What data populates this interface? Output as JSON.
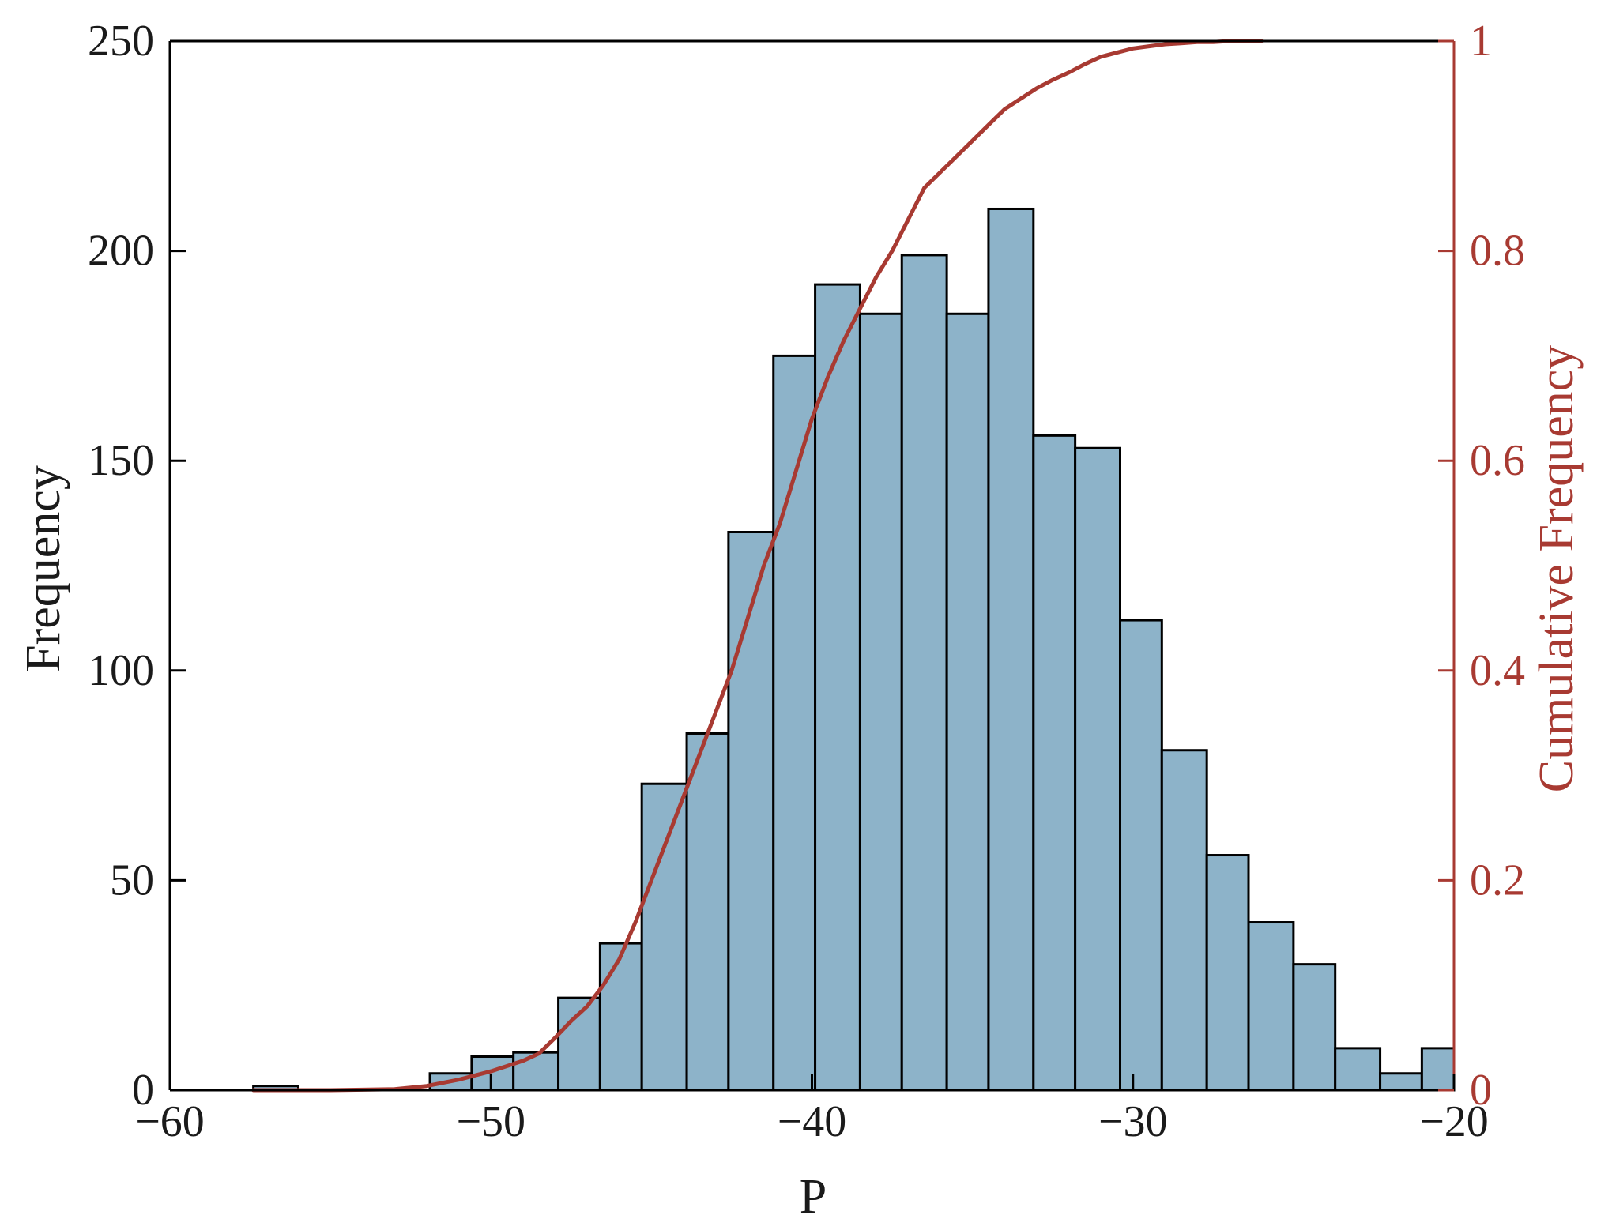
{
  "chart_data": {
    "type": "bar",
    "xlabel": "P",
    "ylabel": "Frequency",
    "y2label": "Cumulative Frequency",
    "xlim": [
      -60,
      -20
    ],
    "ylim": [
      0,
      250
    ],
    "y2lim": [
      0,
      1
    ],
    "xticks": [
      "−60",
      "−50",
      "−40",
      "−30",
      "−20"
    ],
    "yticks": [
      "0",
      "50",
      "100",
      "150",
      "200",
      "250"
    ],
    "y2ticks": [
      "0",
      "0.2",
      "0.4",
      "0.6",
      "0.8",
      "1"
    ],
    "grid": false,
    "bins": [
      {
        "start": -57.4,
        "end": -56.0,
        "count": 1
      },
      {
        "start": -51.9,
        "end": -50.6,
        "count": 4
      },
      {
        "start": -50.6,
        "end": -49.3,
        "count": 8
      },
      {
        "start": -49.3,
        "end": -47.9,
        "count": 9
      },
      {
        "start": -47.9,
        "end": -46.6,
        "count": 22
      },
      {
        "start": -46.6,
        "end": -45.3,
        "count": 35
      },
      {
        "start": -45.3,
        "end": -43.9,
        "count": 73
      },
      {
        "start": -43.9,
        "end": -42.6,
        "count": 85
      },
      {
        "start": -42.6,
        "end": -41.2,
        "count": 133
      },
      {
        "start": -41.2,
        "end": -39.9,
        "count": 175
      },
      {
        "start": -39.9,
        "end": -38.5,
        "count": 192
      },
      {
        "start": -38.5,
        "end": -37.2,
        "count": 185
      },
      {
        "start": -37.2,
        "end": -35.8,
        "count": 199
      },
      {
        "start": -35.8,
        "end": -34.5,
        "count": 185
      },
      {
        "start": -34.5,
        "end": -33.1,
        "count": 210
      },
      {
        "start": -33.1,
        "end": -31.8,
        "count": 156
      },
      {
        "start": -31.8,
        "end": -30.4,
        "count": 153
      },
      {
        "start": -30.4,
        "end": -29.1,
        "count": 112
      },
      {
        "start": -29.1,
        "end": -27.7,
        "count": 81
      },
      {
        "start": -27.7,
        "end": -26.4,
        "count": 56
      },
      {
        "start": -26.4,
        "end": -25.0,
        "count": 40
      },
      {
        "start": -25.0,
        "end": -23.7,
        "count": 30
      },
      {
        "start": -23.7,
        "end": -22.3,
        "count": 10
      },
      {
        "start": -22.3,
        "end": -21.0,
        "count": 4
      },
      {
        "start": -21.0,
        "end": -19.9,
        "count": 10
      }
    ],
    "cumulative_series": {
      "x": [
        -57.4,
        -55,
        -53,
        -52,
        -51,
        -50,
        -49,
        -48.5,
        -48,
        -47.5,
        -47,
        -46.5,
        -46,
        -45.5,
        -45,
        -44.5,
        -44,
        -43.5,
        -43,
        -42.5,
        -42,
        -41.5,
        -41,
        -40.5,
        -40,
        -39.5,
        -39,
        -38.5,
        -38,
        -37.5,
        -37,
        -36.5,
        -36,
        -35.5,
        -35,
        -34.5,
        -34,
        -33.5,
        -33,
        -32.5,
        -32,
        -31.5,
        -31,
        -30.5,
        -30,
        -29.5,
        -29,
        -28.5,
        -28,
        -27.5,
        -27,
        -26.5,
        -26
      ],
      "y": [
        0,
        0,
        0.001,
        0.004,
        0.01,
        0.018,
        0.028,
        0.035,
        0.05,
        0.066,
        0.08,
        0.1,
        0.125,
        0.16,
        0.2,
        0.24,
        0.28,
        0.32,
        0.36,
        0.4,
        0.45,
        0.5,
        0.54,
        0.59,
        0.64,
        0.68,
        0.715,
        0.745,
        0.775,
        0.8,
        0.83,
        0.86,
        0.875,
        0.89,
        0.905,
        0.92,
        0.935,
        0.945,
        0.955,
        0.963,
        0.97,
        0.978,
        0.985,
        0.989,
        0.993,
        0.995,
        0.997,
        0.998,
        0.999,
        0.999,
        1.0,
        1.0,
        1.0
      ]
    }
  }
}
